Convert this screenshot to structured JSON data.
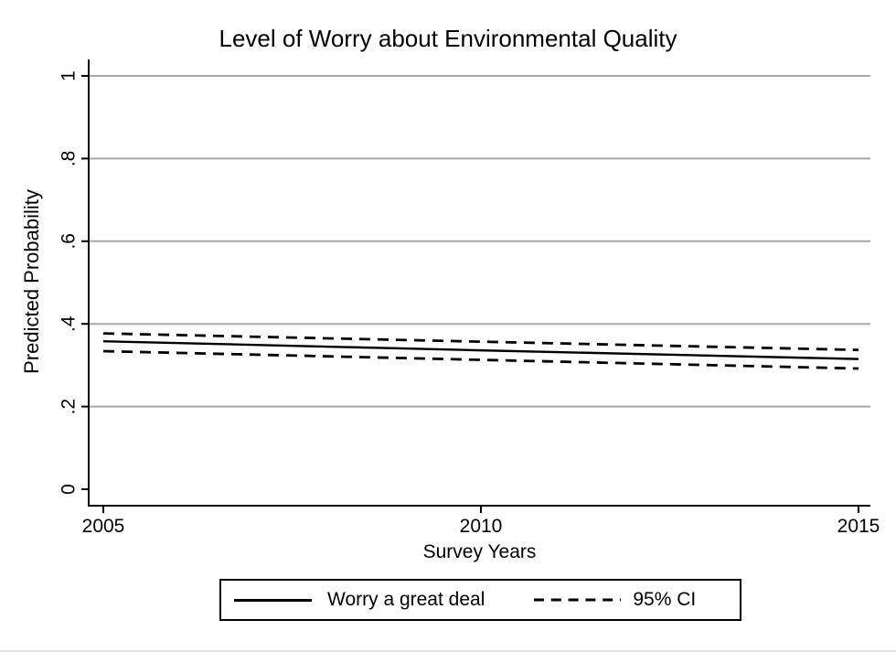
{
  "page": {
    "background": "#ffffff",
    "bottom_bar_color": "#d9e4e8"
  },
  "chart_data": {
    "type": "line",
    "title": "Level of Worry about Environmental Quality",
    "xlabel": "Survey Years",
    "ylabel": "Predicted Probability",
    "x": [
      2005,
      2010,
      2015
    ],
    "xlim": [
      2005,
      2015
    ],
    "ylim": [
      0,
      1
    ],
    "xticks": {
      "values": [
        2005,
        2010,
        2015
      ],
      "labels": [
        "2005",
        "2010",
        "2015"
      ]
    },
    "yticks": {
      "values": [
        0,
        0.2,
        0.4,
        0.6,
        0.8,
        1
      ],
      "labels": [
        "0",
        ".2",
        ".4",
        ".6",
        ".8",
        "1"
      ]
    },
    "grid": true,
    "gridline_values": [
      0.2,
      0.4,
      0.6,
      0.8,
      1
    ],
    "gridline_color": "#a8a8a8",
    "axis_color": "#000000",
    "line_color": "#000000",
    "series": [
      {
        "name": "Worry a great deal",
        "style": "solid",
        "values": [
          0.358,
          0.336,
          0.315
        ]
      },
      {
        "name": "95% CI upper bound",
        "style": "dashed",
        "values": [
          0.377,
          0.357,
          0.337
        ]
      },
      {
        "name": "95% CI lower bound",
        "style": "dashed",
        "values": [
          0.334,
          0.313,
          0.292
        ]
      }
    ],
    "legend": {
      "position": "bottom",
      "entries": [
        {
          "label": "Worry a great deal",
          "style": "solid"
        },
        {
          "label": "95% CI",
          "style": "dashed"
        }
      ]
    }
  }
}
